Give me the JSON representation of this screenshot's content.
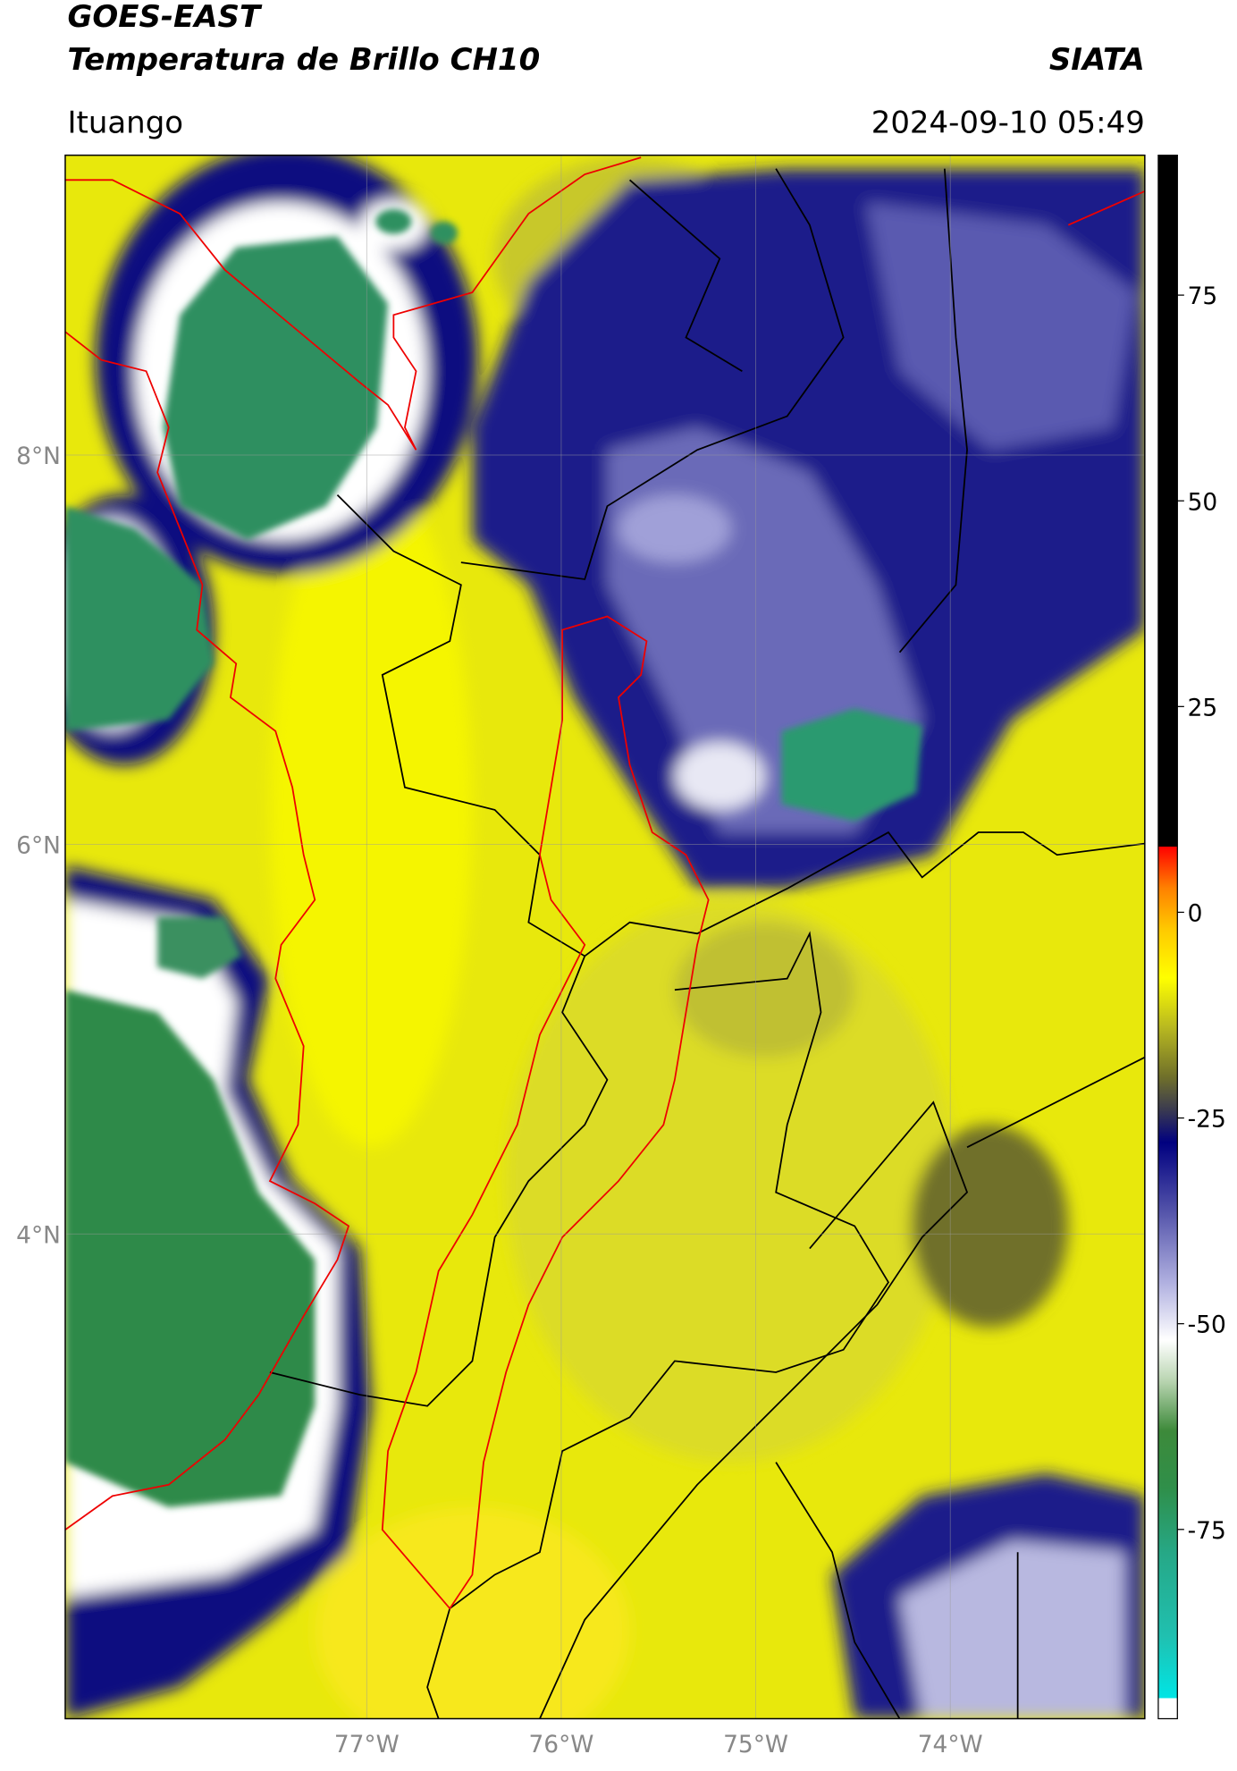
{
  "header": {
    "title": "GOES-EAST",
    "subtitle": "Temperatura de Brillo CH10",
    "org": "SIATA",
    "location": "Ituango",
    "datetime": "2024-09-10 05:49"
  },
  "map": {
    "xlim": [
      -78.55,
      -73.0
    ],
    "ylim": [
      1.51,
      9.54
    ],
    "xticks": [
      {
        "value": -77,
        "label": "77°W"
      },
      {
        "value": -76,
        "label": "76°W"
      },
      {
        "value": -75,
        "label": "75°W"
      },
      {
        "value": -74,
        "label": "74°W"
      }
    ],
    "yticks": [
      {
        "value": 4,
        "label": "4°N"
      },
      {
        "value": 6,
        "label": "6°N"
      },
      {
        "value": 8,
        "label": "8°N"
      }
    ],
    "grid": true
  },
  "colorbar": {
    "lim": [
      -98,
      92
    ],
    "ticks": [
      -75,
      -50,
      -25,
      0,
      25,
      50,
      75
    ],
    "colormap": [
      {
        "value": -98,
        "color": "#ffffff"
      },
      {
        "value": -95.5,
        "color": "#ffffff"
      },
      {
        "value": -95.5,
        "color": "#00e5e5"
      },
      {
        "value": -88,
        "color": "#20c0b0"
      },
      {
        "value": -78,
        "color": "#26a887"
      },
      {
        "value": -70,
        "color": "#2f8f4a"
      },
      {
        "value": -63,
        "color": "#3d8a3a"
      },
      {
        "value": -57,
        "color": "#b8d4b0"
      },
      {
        "value": -52,
        "color": "#ffffff"
      },
      {
        "value": -45,
        "color": "#b0b0e0"
      },
      {
        "value": -36,
        "color": "#5050a8"
      },
      {
        "value": -28,
        "color": "#000080"
      },
      {
        "value": -24,
        "color": "#3a3a50"
      },
      {
        "value": -20,
        "color": "#70702a"
      },
      {
        "value": -14,
        "color": "#b8b820"
      },
      {
        "value": -8,
        "color": "#ffff00"
      },
      {
        "value": -2,
        "color": "#ffc800"
      },
      {
        "value": 3,
        "color": "#ff8000"
      },
      {
        "value": 8,
        "color": "#ff0000"
      },
      {
        "value": 8,
        "color": "#000000"
      },
      {
        "value": 92,
        "color": "#000000"
      }
    ]
  }
}
